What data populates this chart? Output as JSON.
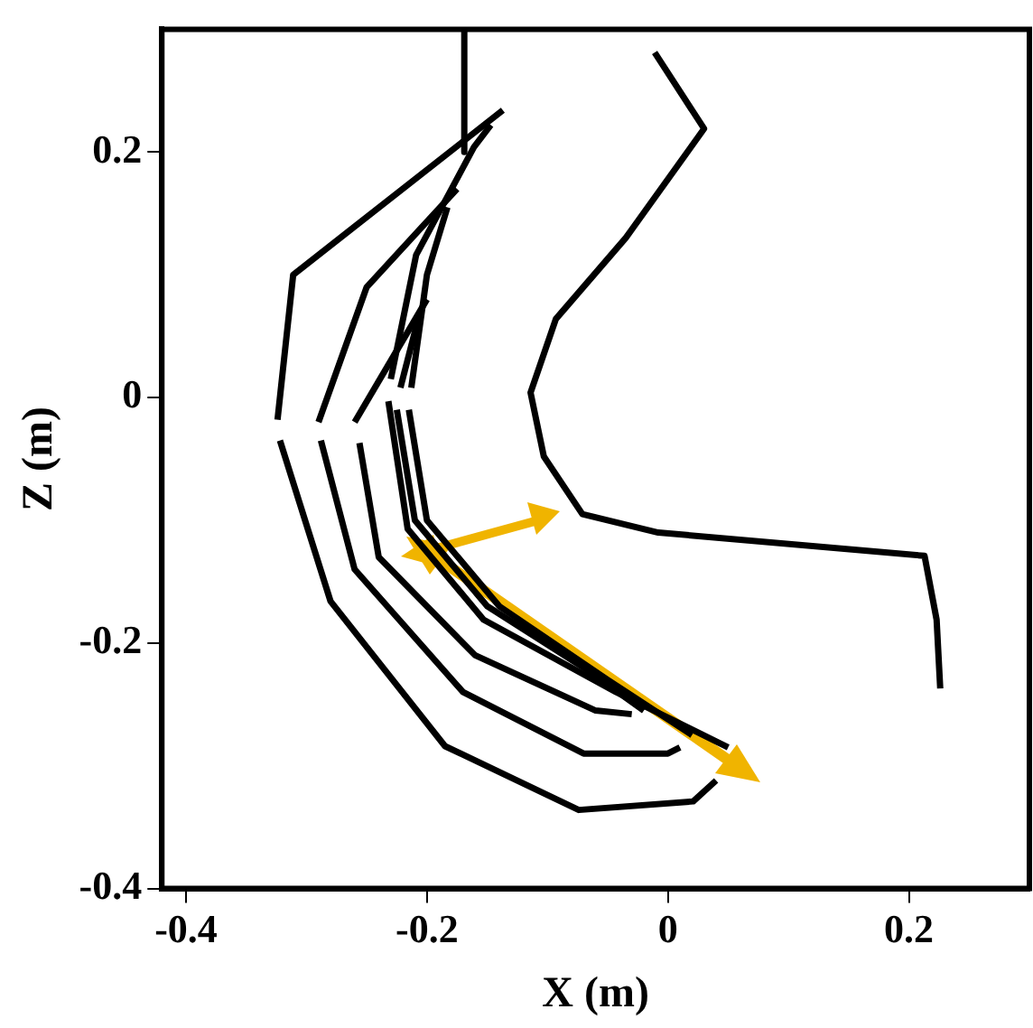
{
  "chart_data": {
    "type": "line",
    "xlabel": "X (m)",
    "ylabel": "Z (m)",
    "xlim": [
      -0.42,
      0.3
    ],
    "ylim": [
      -0.4,
      0.3
    ],
    "xticks": [
      -0.4,
      -0.2,
      0,
      0.2
    ],
    "yticks": [
      -0.4,
      -0.2,
      0,
      0.2
    ],
    "grid": false,
    "legend": false,
    "marker": "none",
    "line_style": "solid",
    "series": [
      {
        "color": "#000000",
        "x": [
          -0.011,
          0.03,
          -0.035,
          -0.093,
          -0.114,
          -0.103,
          -0.071,
          -0.008,
          0.213,
          0.223,
          0.226
        ],
        "values": [
          0.281,
          0.219,
          0.13,
          0.064,
          0.004,
          -0.048,
          -0.095,
          -0.11,
          -0.129,
          -0.181,
          -0.237
        ]
      },
      {
        "color": "#000000",
        "x": [
          -0.169,
          -0.169
        ],
        "values": [
          0.3,
          0.2
        ]
      },
      {
        "color": "#000000",
        "x": [
          -0.324,
          -0.311,
          -0.137
        ],
        "values": [
          -0.018,
          0.1,
          0.234
        ]
      },
      {
        "color": "#000000",
        "x": [
          -0.322,
          -0.28,
          -0.185,
          -0.074,
          0.021,
          0.04
        ],
        "values": [
          -0.035,
          -0.166,
          -0.284,
          -0.336,
          -0.329,
          -0.312
        ]
      },
      {
        "color": "#000000",
        "x": [
          -0.232,
          -0.216,
          -0.153,
          -0.043,
          0.05
        ],
        "values": [
          -0.003,
          -0.107,
          -0.181,
          -0.24,
          -0.285
        ]
      },
      {
        "color": "#000000",
        "x": [
          -0.23,
          -0.209,
          -0.161,
          -0.147
        ],
        "values": [
          0.015,
          0.116,
          0.204,
          0.222
        ]
      },
      {
        "color": "#000000",
        "x": [
          -0.29,
          -0.25,
          -0.175
        ],
        "values": [
          -0.02,
          0.09,
          0.17
        ]
      },
      {
        "color": "#000000",
        "x": [
          -0.288,
          -0.26,
          -0.17,
          -0.07,
          0,
          0.01
        ],
        "values": [
          -0.035,
          -0.14,
          -0.24,
          -0.29,
          -0.29,
          -0.285
        ]
      },
      {
        "color": "#000000",
        "x": [
          -0.215,
          -0.2,
          -0.14,
          -0.05,
          0.02
        ],
        "values": [
          -0.01,
          -0.1,
          -0.17,
          -0.23,
          -0.275
        ]
      },
      {
        "color": "#000000",
        "x": [
          -0.213,
          -0.2,
          -0.183
        ],
        "values": [
          0.008,
          0.1,
          0.155
        ]
      },
      {
        "color": "#000000",
        "x": [
          -0.26,
          -0.2
        ],
        "values": [
          -0.02,
          0.08
        ]
      },
      {
        "color": "#000000",
        "x": [
          -0.256,
          -0.24,
          -0.16,
          -0.06,
          -0.03
        ],
        "values": [
          -0.037,
          -0.13,
          -0.21,
          -0.255,
          -0.258
        ]
      },
      {
        "color": "#000000",
        "x": [
          -0.225,
          -0.21,
          -0.15,
          -0.07,
          -0.02
        ],
        "values": [
          -0.01,
          -0.1,
          -0.17,
          -0.22,
          -0.255
        ]
      },
      {
        "color": "#000000",
        "x": [
          -0.222,
          -0.207
        ],
        "values": [
          0.008,
          0.065
        ]
      }
    ]
  }
}
